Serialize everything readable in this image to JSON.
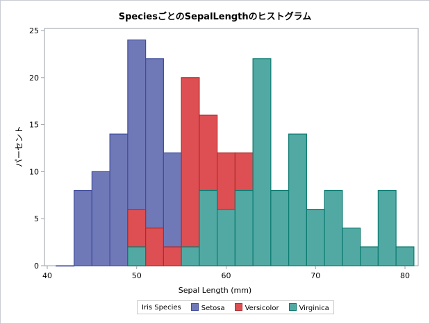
{
  "chart_data": {
    "type": "bar",
    "title": "SpeciesごとのSepalLengthのヒストグラム",
    "xlabel": "Sepal Length (mm)",
    "ylabel": "パーセント",
    "xlim": [
      40,
      81
    ],
    "ylim": [
      0,
      25.5
    ],
    "xticks": [
      40,
      50,
      60,
      70,
      80
    ],
    "yticks": [
      0,
      5,
      10,
      15,
      20,
      25
    ],
    "bin_width": 2,
    "legend": {
      "title": "Iris Species",
      "placement": "bottom"
    },
    "series": [
      {
        "name": "Setosa",
        "color": "#7079b7",
        "edge": "#3f4c9c",
        "bins": [
          42,
          44,
          46,
          48,
          50,
          52,
          54
        ],
        "values": [
          0,
          8,
          10,
          14,
          24,
          22,
          12
        ]
      },
      {
        "name": "Versicolor",
        "color": "#dd4f52",
        "edge": "#b22a2a",
        "bins": [
          50,
          52,
          54,
          56,
          58,
          60,
          62
        ],
        "values": [
          6,
          4,
          2,
          20,
          16,
          12,
          12
        ]
      },
      {
        "name": "Virginica",
        "color": "#52a9a3",
        "edge": "#0a7a70",
        "bins": [
          50,
          56,
          58,
          60,
          62,
          64,
          66,
          68,
          70,
          72,
          74,
          76,
          78,
          80
        ],
        "values": [
          2,
          2,
          8,
          6,
          8,
          22,
          8,
          14,
          6,
          8,
          4,
          2,
          8,
          2
        ]
      }
    ]
  }
}
